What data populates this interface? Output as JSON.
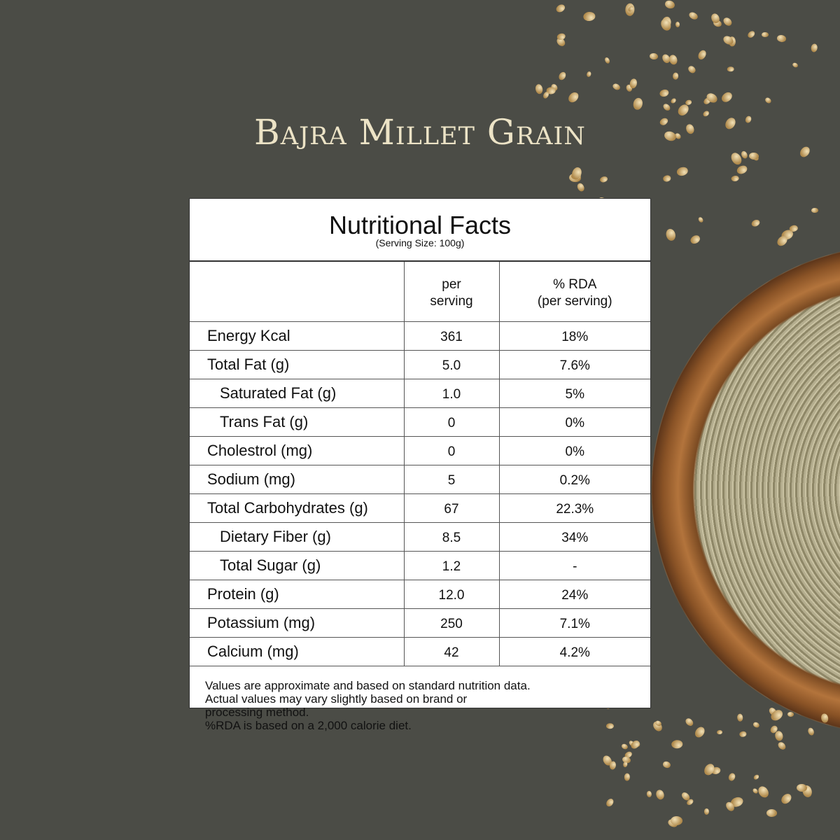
{
  "title": "Bajra Millet Grain",
  "panel": {
    "heading": "Nutritional Facts",
    "serving_size": "(Serving Size: 100g)",
    "columns": [
      "",
      "per serving",
      "% RDA (per serving)"
    ],
    "column_lines": {
      "per_serving": [
        "per",
        "serving"
      ],
      "rda": [
        "% RDA",
        "(per serving)"
      ]
    },
    "rows": [
      {
        "name": "Energy Kcal",
        "per_serving": "361",
        "rda": "18%",
        "indent": false
      },
      {
        "name": "Total Fat (g)",
        "per_serving": "5.0",
        "rda": "7.6%",
        "indent": false
      },
      {
        "name": "Saturated Fat (g)",
        "per_serving": "1.0",
        "rda": "5%",
        "indent": true
      },
      {
        "name": "Trans Fat (g)",
        "per_serving": "0",
        "rda": "0%",
        "indent": true
      },
      {
        "name": "Cholestrol (mg)",
        "per_serving": "0",
        "rda": "0%",
        "indent": false
      },
      {
        "name": "Sodium (mg)",
        "per_serving": "5",
        "rda": "0.2%",
        "indent": false
      },
      {
        "name": "Total Carbohydrates (g)",
        "per_serving": "67",
        "rda": "22.3%",
        "indent": false
      },
      {
        "name": "Dietary Fiber (g)",
        "per_serving": "8.5",
        "rda": "34%",
        "indent": true
      },
      {
        "name": "Total Sugar (g)",
        "per_serving": "1.2",
        "rda": "-",
        "indent": true
      },
      {
        "name": "Protein (g)",
        "per_serving": "12.0",
        "rda": "24%",
        "indent": false
      },
      {
        "name": "Potassium (mg)",
        "per_serving": "250",
        "rda": "7.1%",
        "indent": false
      },
      {
        "name": "Calcium (mg)",
        "per_serving": "42",
        "rda": "4.2%",
        "indent": false
      }
    ],
    "footnote": [
      "Values are approximate and based on standard nutrition data.",
      "Actual values may vary slightly based on brand or",
      "processing method.",
      "%RDA is based on a 2,000 calorie diet."
    ]
  },
  "colors": {
    "background": "#4b4c46",
    "title": "#ece3c6",
    "card": "#ffffff"
  }
}
